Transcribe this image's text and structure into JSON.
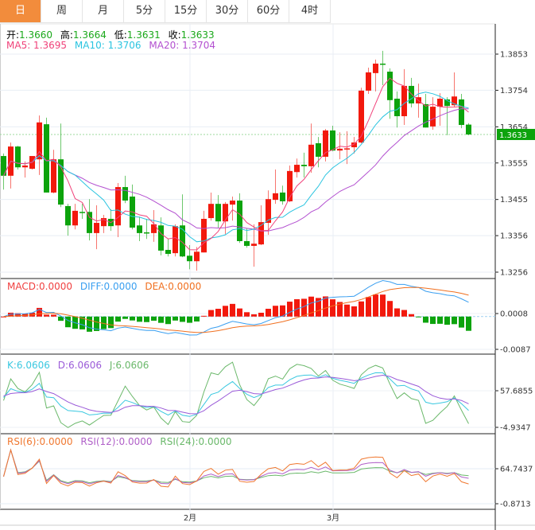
{
  "tabs": [
    "日",
    "周",
    "月",
    "5分",
    "15分",
    "30分",
    "60分",
    "4时"
  ],
  "active_tab": 0,
  "header": {
    "open_label": "开:",
    "open": "1.3660",
    "high_label": "高:",
    "high": "1.3664",
    "low_label": "低:",
    "low": "1.3631",
    "close_label": "收:",
    "close": "1.3633",
    "ma5": "MA5: 1.3695",
    "ma10": "MA10: 1.3706",
    "ma20": "MA20: 1.3704"
  },
  "macd_labels": {
    "macd": "MACD:0.0000",
    "diff": "DIFF:0.0000",
    "dea": "DEA:0.0000"
  },
  "kdj_labels": {
    "k": "K:6.0606",
    "d": "D:6.0606",
    "j": "J:6.0606"
  },
  "rsi_labels": {
    "rsi6": "RSI(6):0.0000",
    "rsi12": "RSI(12):0.0000",
    "rsi24": "RSI(24):0.0000"
  },
  "colors": {
    "up": "#f2190d",
    "down": "#0ca30c",
    "ma5": "#f0427a",
    "ma10": "#2ac4e0",
    "ma20": "#b350d0",
    "diff": "#3a9ff0",
    "dea": "#f07020",
    "k": "#3ac8e0",
    "d": "#9a5ad8",
    "j": "#6ab86a",
    "rsi6": "#f07830",
    "rsi12": "#b060c8",
    "rsi24": "#6ab86a",
    "active_tab": "#f28c3c"
  },
  "chart_data": {
    "type": "candlestick",
    "price_axis": [
      "1.3853",
      "1.3754",
      "1.3654",
      "1.3555",
      "1.3455",
      "1.3356",
      "1.3256"
    ],
    "price_range": [
      1.3256,
      1.3853
    ],
    "current_price": "1.3633",
    "macd_axis": [
      "0.0008",
      "-0.0087"
    ],
    "kdj_axis": [
      "57.6855",
      "-4.9347"
    ],
    "rsi_axis": [
      "64.7437",
      "-0.8713"
    ],
    "x_labels": [
      {
        "label": "2月",
        "index": 26
      },
      {
        "label": "3月",
        "index": 46
      }
    ],
    "candles": [
      [
        1.3574,
        1.3581,
        1.3482,
        1.352
      ],
      [
        1.352,
        1.3611,
        1.3485,
        1.36
      ],
      [
        1.36,
        1.3602,
        1.3537,
        1.3543
      ],
      [
        1.3543,
        1.3559,
        1.3515,
        1.3548
      ],
      [
        1.3539,
        1.3574,
        1.3537,
        1.3574
      ],
      [
        1.3565,
        1.3685,
        1.3522,
        1.3666
      ],
      [
        1.3661,
        1.3679,
        1.3474,
        1.3474
      ],
      [
        1.3474,
        1.3591,
        1.3472,
        1.3565
      ],
      [
        1.3565,
        1.3663,
        1.3434,
        1.3441
      ],
      [
        1.3437,
        1.3443,
        1.3356,
        1.3384
      ],
      [
        1.3384,
        1.3443,
        1.3373,
        1.3424
      ],
      [
        1.3421,
        1.3443,
        1.3402,
        1.3419
      ],
      [
        1.3421,
        1.3456,
        1.3343,
        1.3363
      ],
      [
        1.3363,
        1.3439,
        1.3319,
        1.3391
      ],
      [
        1.3382,
        1.3413,
        1.3363,
        1.3404
      ],
      [
        1.3402,
        1.3428,
        1.3369,
        1.3382
      ],
      [
        1.3384,
        1.35,
        1.3352,
        1.3489
      ],
      [
        1.3489,
        1.352,
        1.3445,
        1.3452
      ],
      [
        1.3463,
        1.3496,
        1.3373,
        1.3378
      ],
      [
        1.3384,
        1.3408,
        1.3341,
        1.3363
      ],
      [
        1.3365,
        1.3402,
        1.3347,
        1.3364
      ],
      [
        1.3363,
        1.3426,
        1.3339,
        1.3387
      ],
      [
        1.3384,
        1.3406,
        1.3302,
        1.3315
      ],
      [
        1.3317,
        1.3347,
        1.3299,
        1.3306
      ],
      [
        1.3308,
        1.3387,
        1.3299,
        1.3382
      ],
      [
        1.3384,
        1.3469,
        1.3297,
        1.3299
      ],
      [
        1.3301,
        1.333,
        1.3264,
        1.3286
      ],
      [
        1.3286,
        1.3325,
        1.326,
        1.3312
      ],
      [
        1.331,
        1.3424,
        1.331,
        1.3402
      ],
      [
        1.3404,
        1.3474,
        1.3397,
        1.3443
      ],
      [
        1.3443,
        1.3467,
        1.3378,
        1.3395
      ],
      [
        1.3395,
        1.3448,
        1.336,
        1.3443
      ],
      [
        1.3441,
        1.3463,
        1.3397,
        1.3452
      ],
      [
        1.3452,
        1.3472,
        1.3336,
        1.3341
      ],
      [
        1.3341,
        1.3376,
        1.3323,
        1.3328
      ],
      [
        1.3328,
        1.3387,
        1.3271,
        1.3334
      ],
      [
        1.3332,
        1.3439,
        1.333,
        1.3393
      ],
      [
        1.3391,
        1.348,
        1.3358,
        1.3456
      ],
      [
        1.3454,
        1.3537,
        1.3443,
        1.3472
      ],
      [
        1.3474,
        1.3493,
        1.3441,
        1.345
      ],
      [
        1.345,
        1.3548,
        1.3448,
        1.3533
      ],
      [
        1.353,
        1.3567,
        1.3515,
        1.355
      ],
      [
        1.355,
        1.3583,
        1.3515,
        1.3546
      ],
      [
        1.3546,
        1.3663,
        1.3528,
        1.3605
      ],
      [
        1.3609,
        1.3626,
        1.3543,
        1.3572
      ],
      [
        1.3572,
        1.3648,
        1.3559,
        1.3644
      ],
      [
        1.3644,
        1.3657,
        1.3587,
        1.3589
      ],
      [
        1.3589,
        1.3639,
        1.3565,
        1.3594
      ],
      [
        1.3594,
        1.3642,
        1.3552,
        1.3595
      ],
      [
        1.3598,
        1.3626,
        1.3581,
        1.3611
      ],
      [
        1.3611,
        1.3761,
        1.3609,
        1.3753
      ],
      [
        1.3753,
        1.3816,
        1.3744,
        1.3803
      ],
      [
        1.3801,
        1.3838,
        1.3751,
        1.3827
      ],
      [
        1.3827,
        1.3862,
        1.3768,
        1.3825
      ],
      [
        1.3805,
        1.3814,
        1.3676,
        1.3727
      ],
      [
        1.3731,
        1.3751,
        1.3652,
        1.3683
      ],
      [
        1.3683,
        1.3812,
        1.3659,
        1.3766
      ],
      [
        1.3766,
        1.3788,
        1.3707,
        1.3718
      ],
      [
        1.3718,
        1.3772,
        1.3679,
        1.3735
      ],
      [
        1.3716,
        1.3744,
        1.3652,
        1.3652
      ],
      [
        1.3655,
        1.3735,
        1.3646,
        1.3709
      ],
      [
        1.3709,
        1.3746,
        1.3657,
        1.3731
      ],
      [
        1.3729,
        1.3735,
        1.3631,
        1.3711
      ],
      [
        1.3713,
        1.3803,
        1.3707,
        1.3737
      ],
      [
        1.3729,
        1.3744,
        1.365,
        1.3659
      ],
      [
        1.366,
        1.3664,
        1.3631,
        1.3633
      ]
    ]
  }
}
